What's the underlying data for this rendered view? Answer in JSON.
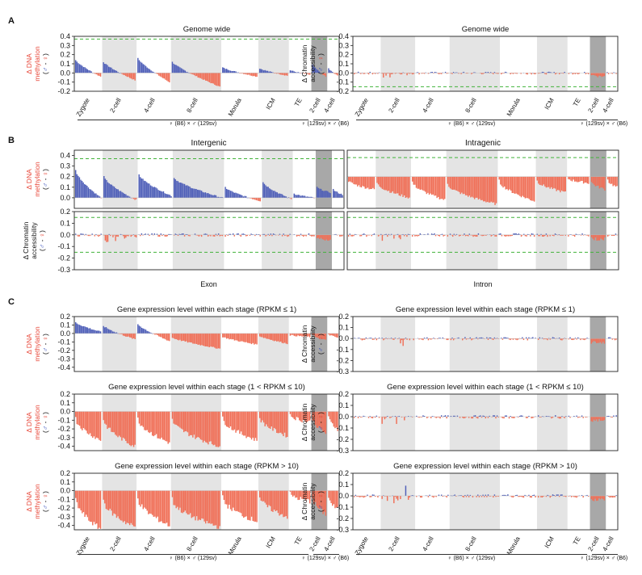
{
  "colors": {
    "meth_pos": "#4f5fb8",
    "meth_neg": "#f07058",
    "shade_light": "#e4e4e4",
    "shade_dark": "#a8a8a8",
    "dash": "#41b23a",
    "male": "#2c44b8",
    "female": "#e8483a"
  },
  "panel_labels": [
    "A",
    "B",
    "C"
  ],
  "y_labels": {
    "meth_line1": "Δ DNA",
    "meth_line2": "methylation",
    "acc_line1": "Δ Chromatin",
    "acc_line2": "accessibility",
    "sym": "(♂ - ♀)"
  },
  "stages": [
    "Zygote",
    "2-cell",
    "4-cell",
    "8-cell",
    "Morula",
    "ICM",
    "TE",
    "2-cell",
    "4-cell"
  ],
  "crosses": {
    "main": "♀ (B6) × ♂ (129sv)",
    "recip": "♀ (129sv) × ♂ (B6)"
  },
  "section_b": {
    "col_left": "Intergenic",
    "col_right": "Intragenic",
    "sub_left": "Exon",
    "sub_right": "Intron"
  },
  "chart_data": [
    {
      "id": "A_meth",
      "type": "bar",
      "title": "Genome wide",
      "ylabel": "Δ DNA methylation (♂ - ♀)",
      "ylim": [
        -0.2,
        0.4
      ],
      "yticks": [
        -0.2,
        -0.1,
        0.0,
        0.1,
        0.2,
        0.3,
        0.4
      ],
      "ref_lines": [
        0.37
      ],
      "profile": "A_meth"
    },
    {
      "id": "A_acc",
      "type": "bar",
      "title": "Genome wide",
      "ylabel": "Δ Chromatin accessibility (♂ - ♀)",
      "ylim": [
        -0.2,
        0.4
      ],
      "yticks": [
        -0.2,
        -0.1,
        0.0,
        0.1,
        0.2,
        0.3,
        0.4
      ],
      "ref_lines": [
        -0.15
      ],
      "profile": "acc"
    },
    {
      "id": "B_meth_inter",
      "type": "bar",
      "title": "Intergenic",
      "ylabel": "Δ DNA methylation (♂ - ♀)",
      "ylim": [
        -0.1,
        0.45
      ],
      "yticks": [
        0.0,
        0.1,
        0.2,
        0.3,
        0.4
      ],
      "ref_lines": [
        0.37
      ],
      "profile": "B_inter"
    },
    {
      "id": "B_meth_intra",
      "type": "bar",
      "title": "Intragenic",
      "ylim": [
        -0.3,
        0.25
      ],
      "ref_lines": [
        0.18
      ],
      "profile": "B_intra"
    },
    {
      "id": "B_acc_inter",
      "type": "bar",
      "title": "Exon",
      "ylabel": "Δ Chromatin accessibility (♂ - ♀)",
      "ylim": [
        -0.3,
        0.2
      ],
      "yticks": [
        -0.3,
        -0.2,
        -0.1,
        0.0,
        0.1,
        0.2
      ],
      "ref_lines": [
        0.15,
        -0.15
      ],
      "profile": "acc"
    },
    {
      "id": "B_acc_intra",
      "type": "bar",
      "title": "Intron",
      "ylim": [
        -0.3,
        0.2
      ],
      "ref_lines": [
        0.15,
        -0.15
      ],
      "profile": "acc"
    },
    {
      "id": "C_meth_1",
      "type": "bar",
      "title": "Gene expression level within each stage (RPKM ≤ 1)",
      "ylabel": "Δ DNA methylation (♂ - ♀)",
      "ylim": [
        -0.45,
        0.2
      ],
      "yticks": [
        -0.4,
        -0.3,
        -0.2,
        -0.1,
        0.0,
        0.1,
        0.2
      ],
      "ref_lines": [],
      "profile": "C1"
    },
    {
      "id": "C_acc_1",
      "type": "bar",
      "title": "Gene expression level within each stage (RPKM ≤ 1)",
      "ylabel": "Δ Chromatin accessibility (♂ - ♀)",
      "ylim": [
        -0.3,
        0.2
      ],
      "yticks": [
        -0.3,
        -0.2,
        -0.1,
        0.0,
        0.1,
        0.2
      ],
      "ref_lines": [],
      "profile": "acc"
    },
    {
      "id": "C_meth_2",
      "type": "bar",
      "title": "Gene expression level within each stage (1 < RPKM ≤ 10)",
      "ylabel": "Δ DNA methylation (♂ - ♀)",
      "ylim": [
        -0.45,
        0.2
      ],
      "yticks": [
        -0.4,
        -0.3,
        -0.2,
        -0.1,
        0.0,
        0.1,
        0.2
      ],
      "ref_lines": [],
      "profile": "C2"
    },
    {
      "id": "C_acc_2",
      "type": "bar",
      "title": "Gene expression level within each stage (1 < RPKM ≤ 10)",
      "ylabel": "Δ Chromatin accessibility (♂ - ♀)",
      "ylim": [
        -0.3,
        0.2
      ],
      "yticks": [
        -0.3,
        -0.2,
        -0.1,
        0.0,
        0.1,
        0.2
      ],
      "ref_lines": [],
      "profile": "acc"
    },
    {
      "id": "C_meth_3",
      "type": "bar",
      "title": "Gene expression level within each stage (RPKM > 10)",
      "ylabel": "Δ DNA methylation (♂ - ♀)",
      "ylim": [
        -0.45,
        0.2
      ],
      "yticks": [
        -0.4,
        -0.3,
        -0.2,
        -0.1,
        0.0,
        0.1,
        0.2
      ],
      "ref_lines": [],
      "profile": "C3"
    },
    {
      "id": "C_acc_3",
      "type": "bar",
      "title": "Gene expression level within each stage (RPKM > 10)",
      "ylabel": "Δ Chromatin accessibility (♂ - ♀)",
      "ylim": [
        -0.3,
        0.2
      ],
      "yticks": [
        -0.3,
        -0.2,
        -0.1,
        0.0,
        0.1,
        0.2
      ],
      "ref_lines": [],
      "profile": "acc_spike"
    }
  ]
}
